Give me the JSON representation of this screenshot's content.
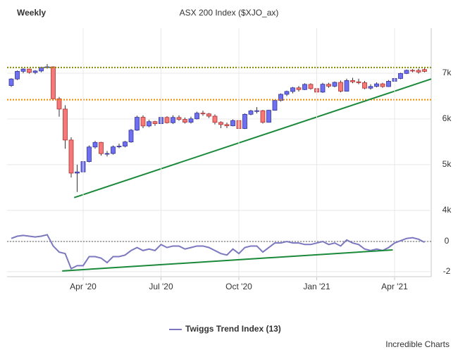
{
  "credit": "Incredible Charts",
  "chart_data": [
    {
      "type": "candlestick",
      "subtitle": "Weekly",
      "title": "ASX 200 Index ($XJO_ax)",
      "up_color": "#6f6ff2",
      "down_color": "#f47a7a",
      "grid": true,
      "ylim": [
        3860,
        7985
      ],
      "yticks": [
        {
          "value": 4000,
          "label": "4k"
        },
        {
          "value": 5000,
          "label": "5k"
        },
        {
          "value": 6000,
          "label": "6k"
        },
        {
          "value": 7000,
          "label": "7k"
        }
      ],
      "series": [
        {
          "open": [
            6730,
            6874,
            7041,
            7090,
            7017,
            7049,
            7125,
            7139,
            6441,
            6216,
            5539,
            4816,
            4842,
            5068,
            5387,
            5487,
            5242,
            5245,
            5390,
            5405,
            5497,
            5755,
            6037,
            5847,
            5942,
            5897,
            6034,
            5918,
            6033,
            5990,
            5928,
            6003,
            6127,
            6111,
            6061,
            5925,
            5878,
            5850,
            5965,
            5791,
            6102,
            6176,
            6180,
            5927,
            6190,
            6405,
            6539,
            6601,
            6681,
            6642,
            6756,
            6664,
            6587,
            6758,
            6716,
            6800,
            6607,
            6840,
            6812,
            6793,
            6673,
            6711,
            6767,
            6708,
            6824,
            6885,
            6995,
            7063,
            7061,
            7080
          ],
          "high": [
            6890,
            7060,
            7110,
            7100,
            7070,
            7140,
            7200,
            7150,
            6480,
            6300,
            5600,
            5000,
            5200,
            5420,
            5520,
            5500,
            5300,
            5420,
            5460,
            5520,
            5780,
            6070,
            6080,
            5980,
            5960,
            6060,
            6060,
            6080,
            6080,
            6030,
            6050,
            6160,
            6180,
            6130,
            6100,
            5950,
            5920,
            5990,
            5990,
            6120,
            6200,
            6260,
            6200,
            6200,
            6420,
            6560,
            6620,
            6700,
            6720,
            6780,
            6780,
            6700,
            6790,
            6790,
            6820,
            6840,
            6880,
            6900,
            6880,
            6830,
            6760,
            6800,
            6790,
            6850,
            6900,
            7010,
            7080,
            7090,
            7100,
            7110
          ],
          "low": [
            6700,
            6850,
            7000,
            6990,
            6980,
            7020,
            7100,
            6400,
            6050,
            5350,
            4720,
            4402,
            4800,
            5050,
            5350,
            5200,
            5180,
            5220,
            5360,
            5380,
            5480,
            5740,
            5800,
            5820,
            5850,
            5880,
            5900,
            5890,
            5960,
            5900,
            5900,
            5990,
            6070,
            6020,
            5880,
            5800,
            5800,
            5840,
            5760,
            5780,
            6080,
            6120,
            5900,
            5920,
            6180,
            6380,
            6500,
            6560,
            6600,
            6630,
            6640,
            6560,
            6570,
            6680,
            6690,
            6580,
            6600,
            6780,
            6760,
            6650,
            6640,
            6690,
            6680,
            6700,
            6800,
            6870,
            6980,
            7020,
            6990,
            7020
          ],
          "close": [
            6874,
            7041,
            7090,
            7017,
            7049,
            7125,
            7139,
            6441,
            6216,
            5539,
            4816,
            4842,
            5068,
            5387,
            5487,
            5242,
            5245,
            5390,
            5405,
            5497,
            5755,
            6037,
            5847,
            5942,
            5897,
            6034,
            5918,
            6033,
            5990,
            5928,
            6003,
            6127,
            6111,
            6061,
            5925,
            5878,
            5850,
            5965,
            5791,
            6102,
            6176,
            6180,
            5927,
            6190,
            6405,
            6539,
            6601,
            6681,
            6642,
            6756,
            6664,
            6587,
            6758,
            6716,
            6800,
            6607,
            6840,
            6812,
            6793,
            6673,
            6711,
            6767,
            6708,
            6824,
            6885,
            6995,
            7063,
            7061,
            7025,
            7040
          ]
        }
      ],
      "reference_lines": [
        {
          "value": 7125,
          "color": "#8a8a00"
        },
        {
          "value": 6420,
          "color": "#f08a00"
        }
      ],
      "trend_lines": [
        {
          "x": [
            10.5,
            70.5
          ],
          "values": [
            4280,
            6890
          ],
          "color": "#1a8a3a"
        }
      ]
    },
    {
      "type": "line",
      "ylim": [
        -2.33,
        0.98
      ],
      "yticks": [
        -2,
        0
      ],
      "zero_line": true,
      "categories": [
        null,
        null,
        null,
        null,
        null,
        null,
        null,
        null,
        null,
        null,
        null,
        null,
        "Apr '20",
        null,
        null,
        null,
        null,
        null,
        null,
        null,
        null,
        null,
        null,
        null,
        null,
        "Jul '20",
        null,
        null,
        null,
        null,
        null,
        null,
        null,
        null,
        null,
        null,
        null,
        null,
        "Oct '20",
        null,
        null,
        null,
        null,
        null,
        null,
        null,
        null,
        null,
        null,
        null,
        null,
        "Jan '21",
        null,
        null,
        null,
        null,
        null,
        null,
        null,
        null,
        null,
        null,
        null,
        null,
        "Apr '21",
        null,
        null,
        null,
        null,
        null
      ],
      "series": [
        {
          "name": "Twiggs Trend Index (13)",
          "color": "#7b78c0",
          "values": [
            0.2,
            0.35,
            0.4,
            0.35,
            0.3,
            0.35,
            0.45,
            -0.3,
            -0.7,
            -0.8,
            -1.8,
            -1.6,
            -1.6,
            -1.0,
            -1.0,
            -1.1,
            -1.4,
            -1.0,
            -1.0,
            -0.9,
            -0.6,
            -0.4,
            -0.6,
            -0.5,
            -0.6,
            -0.2,
            -0.4,
            -0.3,
            -0.3,
            -0.5,
            -0.4,
            -0.3,
            -0.3,
            -0.4,
            -0.6,
            -0.8,
            -0.9,
            -0.5,
            -0.8,
            -0.4,
            -0.3,
            -0.3,
            -0.7,
            -0.4,
            -0.1,
            -0.1,
            0.0,
            -0.1,
            -0.1,
            -0.2,
            -0.2,
            -0.1,
            0.0,
            -0.2,
            -0.1,
            -0.3,
            0.1,
            -0.1,
            -0.2,
            -0.5,
            -0.6,
            -0.5,
            -0.6,
            -0.4,
            -0.1,
            0.05,
            0.2,
            0.25,
            0.15,
            -0.05
          ]
        }
      ],
      "trend_lines": [
        {
          "x": [
            8.5,
            63.7
          ],
          "values": [
            -1.95,
            -0.56
          ],
          "color": "#1a8a3a"
        }
      ]
    }
  ]
}
